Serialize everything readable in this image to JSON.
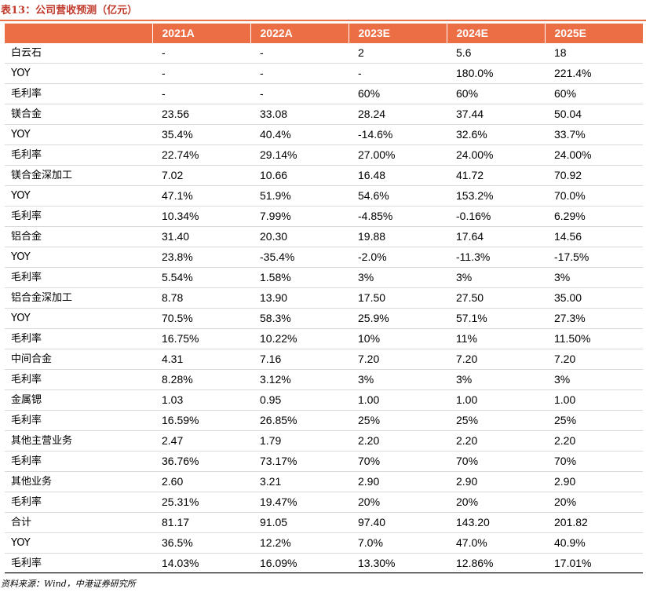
{
  "title": "表13：公司营收预测（亿元）",
  "table": {
    "header": [
      "",
      "2021A",
      "2022A",
      "2023E",
      "2024E",
      "2025E"
    ],
    "rows": [
      {
        "label": "白云石",
        "values": [
          "-",
          "-",
          "2",
          "5.6",
          "18"
        ]
      },
      {
        "label": "YOY",
        "values": [
          "-",
          "-",
          "-",
          "180.0%",
          "221.4%"
        ]
      },
      {
        "label": "毛利率",
        "values": [
          "-",
          "-",
          "60%",
          "60%",
          "60%"
        ]
      },
      {
        "label": "镁合金",
        "values": [
          "23.56",
          "33.08",
          "28.24",
          "37.44",
          "50.04"
        ]
      },
      {
        "label": "YOY",
        "values": [
          "35.4%",
          "40.4%",
          "-14.6%",
          "32.6%",
          "33.7%"
        ]
      },
      {
        "label": "毛利率",
        "values": [
          "22.74%",
          "29.14%",
          "27.00%",
          "24.00%",
          "24.00%"
        ]
      },
      {
        "label": "镁合金深加工",
        "values": [
          "7.02",
          "10.66",
          "16.48",
          "41.72",
          "70.92"
        ]
      },
      {
        "label": "YOY",
        "values": [
          "47.1%",
          "51.9%",
          "54.6%",
          "153.2%",
          "70.0%"
        ]
      },
      {
        "label": "毛利率",
        "values": [
          "10.34%",
          "7.99%",
          "-4.85%",
          "-0.16%",
          "6.29%"
        ]
      },
      {
        "label": "铝合金",
        "values": [
          "31.40",
          "20.30",
          "19.88",
          "17.64",
          "14.56"
        ]
      },
      {
        "label": "YOY",
        "values": [
          "23.8%",
          "-35.4%",
          "-2.0%",
          "-11.3%",
          "-17.5%"
        ]
      },
      {
        "label": "毛利率",
        "values": [
          "5.54%",
          "1.58%",
          "3%",
          "3%",
          "3%"
        ]
      },
      {
        "label": "铝合金深加工",
        "values": [
          "8.78",
          "13.90",
          "17.50",
          "27.50",
          "35.00"
        ]
      },
      {
        "label": "YOY",
        "values": [
          "70.5%",
          "58.3%",
          "25.9%",
          "57.1%",
          "27.3%"
        ]
      },
      {
        "label": "毛利率",
        "values": [
          "16.75%",
          "10.22%",
          "10%",
          "11%",
          "11.50%"
        ]
      },
      {
        "label": "中间合金",
        "values": [
          "4.31",
          "7.16",
          "7.20",
          "7.20",
          "7.20"
        ]
      },
      {
        "label": "毛利率",
        "values": [
          "8.28%",
          "3.12%",
          "3%",
          "3%",
          "3%"
        ]
      },
      {
        "label": "金属锶",
        "values": [
          "1.03",
          "0.95",
          "1.00",
          "1.00",
          "1.00"
        ]
      },
      {
        "label": "毛利率",
        "values": [
          "16.59%",
          "26.85%",
          "25%",
          "25%",
          "25%"
        ]
      },
      {
        "label": "其他主营业务",
        "values": [
          "2.47",
          "1.79",
          "2.20",
          "2.20",
          "2.20"
        ]
      },
      {
        "label": "毛利率",
        "values": [
          "36.76%",
          "73.17%",
          "70%",
          "70%",
          "70%"
        ]
      },
      {
        "label": "其他业务",
        "values": [
          "2.60",
          "3.21",
          "2.90",
          "2.90",
          "2.90"
        ]
      },
      {
        "label": "毛利率",
        "values": [
          "25.31%",
          "19.47%",
          "20%",
          "20%",
          "20%"
        ]
      },
      {
        "label": "合计",
        "values": [
          "81.17",
          "91.05",
          "97.40",
          "143.20",
          "201.82"
        ]
      },
      {
        "label": "YOY",
        "values": [
          "36.5%",
          "12.2%",
          "7.0%",
          "47.0%",
          "40.9%"
        ]
      },
      {
        "label": "毛利率",
        "values": [
          "14.03%",
          "16.09%",
          "13.30%",
          "12.86%",
          "17.01%"
        ]
      }
    ]
  },
  "source": "资料来源：Wind，中港证券研究所",
  "colors": {
    "header_bg": "#ec6e45",
    "title": "#c0392b",
    "rule": "#e8734a"
  }
}
